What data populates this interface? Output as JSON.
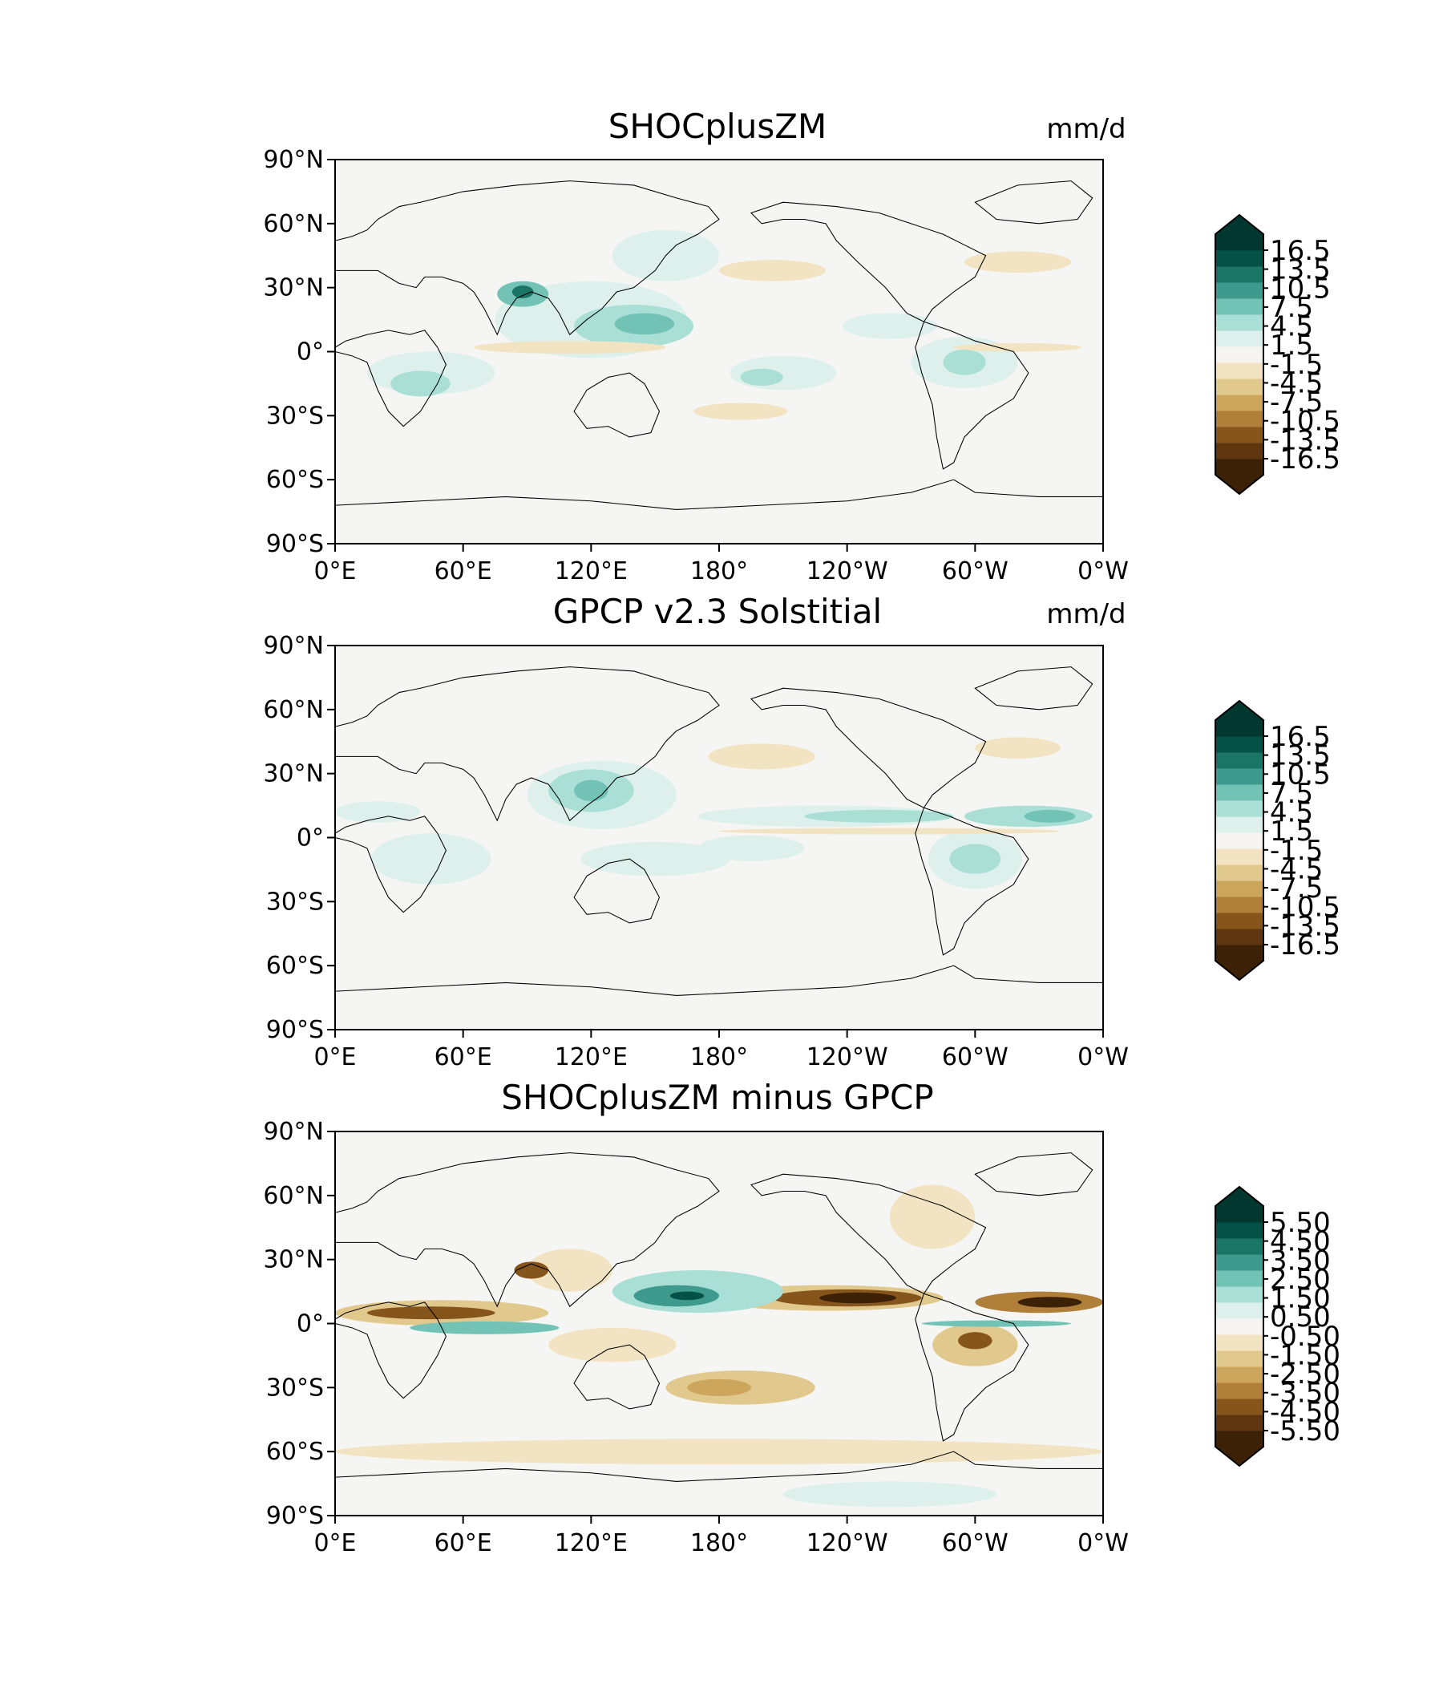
{
  "panels": [
    {
      "id": "model",
      "title": "SHOCplusZM",
      "units": "mm/d",
      "colorbar_ticks": [
        "16.5",
        "13.5",
        "10.5",
        "7.5",
        "4.5",
        "1.5",
        "-1.5",
        "-4.5",
        "-7.5",
        "-10.5",
        "-13.5",
        "-16.5"
      ]
    },
    {
      "id": "obs",
      "title": "GPCP v2.3 Solstitial",
      "units": "mm/d",
      "colorbar_ticks": [
        "16.5",
        "13.5",
        "10.5",
        "7.5",
        "4.5",
        "1.5",
        "-1.5",
        "-4.5",
        "-7.5",
        "-10.5",
        "-13.5",
        "-16.5"
      ]
    },
    {
      "id": "diff",
      "title": "SHOCplusZM minus GPCP",
      "units": "",
      "colorbar_ticks": [
        "5.50",
        "4.50",
        "3.50",
        "2.50",
        "1.50",
        "0.50",
        "-0.50",
        "-1.50",
        "-2.50",
        "-3.50",
        "-4.50",
        "-5.50"
      ]
    }
  ],
  "lat_ticks": [
    "90°N",
    "60°N",
    "30°N",
    "0°",
    "30°S",
    "60°S",
    "90°S"
  ],
  "lon_ticks": [
    "0°E",
    "60°E",
    "120°E",
    "180°",
    "120°W",
    "60°W",
    "0°W"
  ],
  "colors": {
    "colorbar": [
      "#3c2106",
      "#5e3710",
      "#86551b",
      "#b0803a",
      "#cda65e",
      "#e1c98e",
      "#f2e4c3",
      "#f5f4f0",
      "#ddf0ec",
      "#aadfd6",
      "#72c2b5",
      "#3e9a8d",
      "#1b7567",
      "#035147",
      "#01372f"
    ],
    "background": "#f5f5f3",
    "coast": "#000000"
  }
}
